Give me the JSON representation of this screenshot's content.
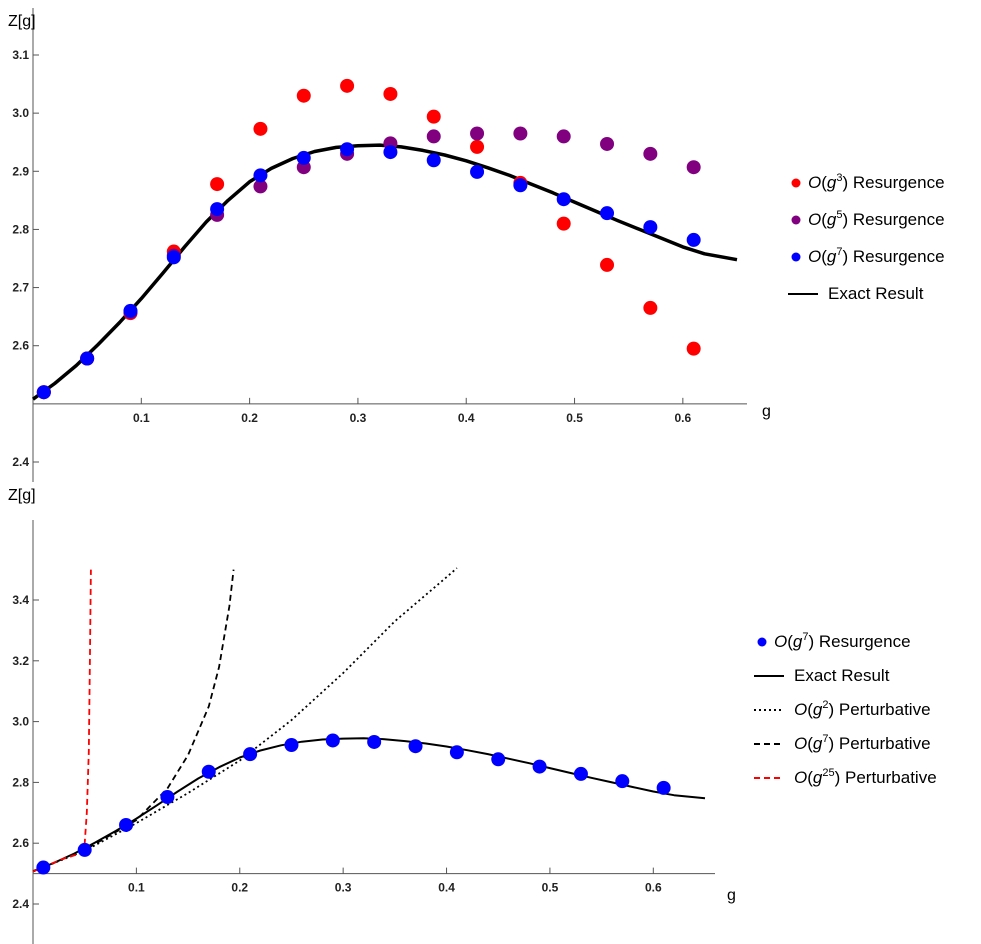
{
  "chart_data": [
    {
      "type": "scatter",
      "ylabel": "Z[g]",
      "xlabel": "g",
      "xlim": [
        0,
        0.65
      ],
      "ylim": [
        2.35,
        3.15
      ],
      "x_ticks": [
        0.1,
        0.2,
        0.3,
        0.4,
        0.5,
        0.6
      ],
      "x_tick_labels": [
        "0.1",
        "0.2",
        "0.3",
        "0.4",
        "0.5",
        "0.6"
      ],
      "y_ticks": [
        2.4,
        2.6,
        2.7,
        2.8,
        2.9,
        3.0,
        3.1
      ],
      "y_tick_labels": [
        "2.4",
        "2.6",
        "2.7",
        "2.8",
        "2.9",
        "3.0",
        "3.1"
      ],
      "x_axis_at_y": 2.5,
      "legend_position": "right",
      "grid": false,
      "series": [
        {
          "name_prefix": "O(g",
          "name_sup": "3",
          "name_suffix": ") Resurgence",
          "kind": "points",
          "color": "#ff0000",
          "x": [
            0.01,
            0.05,
            0.09,
            0.13,
            0.17,
            0.21,
            0.25,
            0.29,
            0.33,
            0.37,
            0.41,
            0.45,
            0.49,
            0.53,
            0.57,
            0.61
          ],
          "y": [
            2.52,
            2.578,
            2.656,
            2.762,
            2.878,
            2.973,
            3.03,
            3.047,
            3.033,
            2.994,
            2.942,
            2.88,
            2.81,
            2.739,
            2.665,
            2.595
          ]
        },
        {
          "name_prefix": "O(g",
          "name_sup": "5",
          "name_suffix": ") Resurgence",
          "kind": "points",
          "color": "#800080",
          "x": [
            0.01,
            0.05,
            0.09,
            0.13,
            0.17,
            0.21,
            0.25,
            0.29,
            0.33,
            0.37,
            0.41,
            0.45,
            0.49,
            0.53,
            0.57,
            0.61
          ],
          "y": [
            2.52,
            2.578,
            2.658,
            2.755,
            2.825,
            2.874,
            2.907,
            2.93,
            2.948,
            2.96,
            2.965,
            2.965,
            2.96,
            2.947,
            2.93,
            2.907
          ]
        },
        {
          "name_prefix": "O(g",
          "name_sup": "7",
          "name_suffix": ") Resurgence",
          "kind": "points",
          "color": "#0000ff",
          "x": [
            0.01,
            0.05,
            0.09,
            0.13,
            0.17,
            0.21,
            0.25,
            0.29,
            0.33,
            0.37,
            0.41,
            0.45,
            0.49,
            0.53,
            0.57,
            0.61
          ],
          "y": [
            2.52,
            2.578,
            2.66,
            2.752,
            2.835,
            2.893,
            2.923,
            2.938,
            2.933,
            2.919,
            2.899,
            2.876,
            2.852,
            2.828,
            2.804,
            2.782
          ]
        },
        {
          "name": "Exact Result",
          "kind": "line",
          "color": "#000000",
          "dash": "solid",
          "x": [
            0.0,
            0.02,
            0.04,
            0.06,
            0.08,
            0.1,
            0.12,
            0.14,
            0.16,
            0.18,
            0.2,
            0.22,
            0.24,
            0.26,
            0.28,
            0.3,
            0.32,
            0.34,
            0.36,
            0.38,
            0.4,
            0.42,
            0.44,
            0.46,
            0.48,
            0.5,
            0.52,
            0.54,
            0.56,
            0.58,
            0.6,
            0.62,
            0.65
          ],
          "y": [
            2.508,
            2.535,
            2.566,
            2.602,
            2.64,
            2.681,
            2.725,
            2.77,
            2.813,
            2.85,
            2.882,
            2.905,
            2.922,
            2.934,
            2.941,
            2.944,
            2.945,
            2.942,
            2.936,
            2.928,
            2.918,
            2.906,
            2.893,
            2.878,
            2.863,
            2.847,
            2.831,
            2.815,
            2.8,
            2.785,
            2.77,
            2.758,
            2.748
          ]
        }
      ]
    },
    {
      "type": "line",
      "ylabel": "Z[g]",
      "xlabel": "g",
      "xlim": [
        0,
        0.65
      ],
      "ylim": [
        2.35,
        3.55
      ],
      "x_ticks": [
        0.1,
        0.2,
        0.3,
        0.4,
        0.5,
        0.6
      ],
      "x_tick_labels": [
        "0.1",
        "0.2",
        "0.3",
        "0.4",
        "0.5",
        "0.6"
      ],
      "y_ticks": [
        2.4,
        2.6,
        2.8,
        3.0,
        3.2,
        3.4
      ],
      "y_tick_labels": [
        "2.4",
        "2.6",
        "2.8",
        "3.0",
        "3.2",
        "3.4"
      ],
      "x_axis_at_y": 2.5,
      "legend_position": "right",
      "grid": false,
      "series": [
        {
          "name_prefix": "O(g",
          "name_sup": "7",
          "name_suffix": ") Resurgence",
          "kind": "points",
          "color": "#0000ff",
          "x": [
            0.01,
            0.05,
            0.09,
            0.13,
            0.17,
            0.21,
            0.25,
            0.29,
            0.33,
            0.37,
            0.41,
            0.45,
            0.49,
            0.53,
            0.57,
            0.61
          ],
          "y": [
            2.52,
            2.578,
            2.66,
            2.752,
            2.835,
            2.893,
            2.923,
            2.938,
            2.933,
            2.919,
            2.899,
            2.876,
            2.852,
            2.828,
            2.804,
            2.782
          ]
        },
        {
          "name": "Exact Result",
          "kind": "line",
          "color": "#000000",
          "dash": "solid",
          "x": [
            0.0,
            0.02,
            0.04,
            0.06,
            0.08,
            0.1,
            0.12,
            0.14,
            0.16,
            0.18,
            0.2,
            0.22,
            0.24,
            0.26,
            0.28,
            0.3,
            0.32,
            0.34,
            0.36,
            0.38,
            0.4,
            0.42,
            0.44,
            0.46,
            0.48,
            0.5,
            0.52,
            0.54,
            0.56,
            0.58,
            0.6,
            0.62,
            0.65
          ],
          "y": [
            2.508,
            2.535,
            2.566,
            2.602,
            2.64,
            2.681,
            2.725,
            2.77,
            2.813,
            2.85,
            2.882,
            2.905,
            2.922,
            2.934,
            2.941,
            2.944,
            2.945,
            2.942,
            2.936,
            2.928,
            2.918,
            2.906,
            2.893,
            2.878,
            2.863,
            2.847,
            2.831,
            2.815,
            2.8,
            2.785,
            2.77,
            2.758,
            2.748
          ]
        },
        {
          "name_prefix": "O(g",
          "name_sup": "2",
          "name_suffix": ") Perturbative",
          "kind": "line",
          "color": "#000000",
          "dash": "dotted",
          "x": [
            0.0,
            0.05,
            0.1,
            0.15,
            0.2,
            0.25,
            0.3,
            0.35,
            0.4,
            0.41
          ],
          "y": [
            2.507,
            2.575,
            2.666,
            2.765,
            2.872,
            3.005,
            3.16,
            3.33,
            3.475,
            3.505
          ]
        },
        {
          "name_prefix": "O(g",
          "name_sup": "7",
          "name_suffix": ") Perturbative",
          "kind": "line",
          "color": "#000000",
          "dash": "dashed",
          "x": [
            0.0,
            0.05,
            0.1,
            0.13,
            0.15,
            0.17,
            0.18,
            0.19,
            0.194
          ],
          "y": [
            2.507,
            2.578,
            2.676,
            2.78,
            2.89,
            3.05,
            3.18,
            3.38,
            3.5
          ]
        },
        {
          "name_prefix": "O(g",
          "name_sup": "25",
          "name_suffix": ") Perturbative",
          "kind": "line",
          "color": "#ff0000",
          "dash": "dashed",
          "x": [
            0.0,
            0.03,
            0.045,
            0.05,
            0.052,
            0.054,
            0.055,
            0.056
          ],
          "y": [
            2.507,
            2.55,
            2.565,
            2.6,
            2.7,
            2.9,
            3.2,
            3.5
          ]
        }
      ]
    }
  ]
}
